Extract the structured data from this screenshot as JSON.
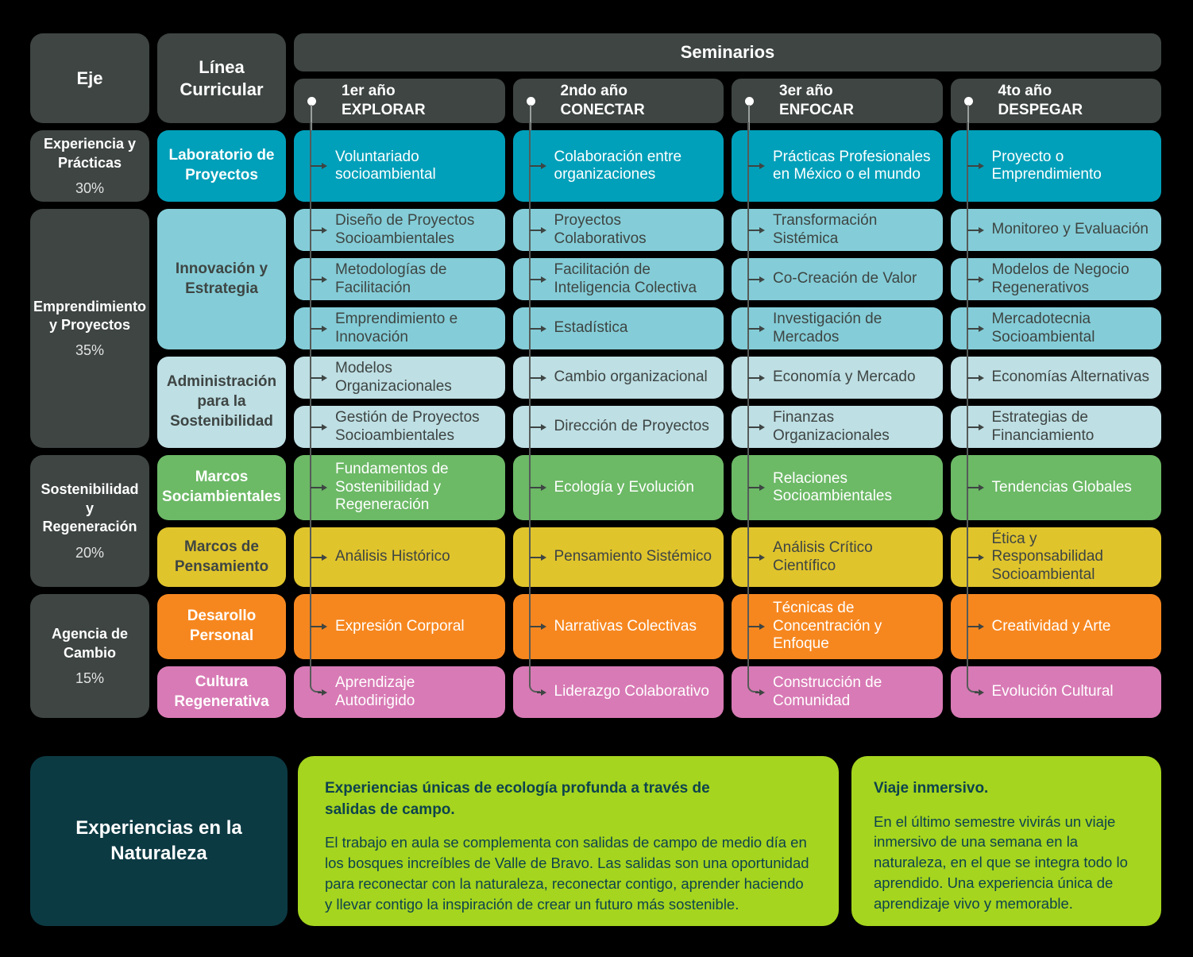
{
  "palette": {
    "background": "#000000",
    "header_dark": "#3e4543",
    "teal": "#00a0ba",
    "light_blue": "#84cdd8",
    "pale_blue": "#bedfe4",
    "green": "#6cb966",
    "yellow": "#e0c42c",
    "orange": "#f6871f",
    "pink": "#d87ab5",
    "dark_teal": "#0c3a43",
    "lime": "#a5d51e",
    "lime_text": "#0e434d",
    "timeline_line": "#565b59"
  },
  "header": {
    "eje": "Eje",
    "linea_curricular": "Línea Curricular",
    "seminarios": "Seminarios",
    "years": [
      {
        "year": "1er año",
        "theme": "EXPLORAR"
      },
      {
        "year": "2ndo año",
        "theme": "CONECTAR"
      },
      {
        "year": "3er año",
        "theme": "ENFOCAR"
      },
      {
        "year": "4to año",
        "theme": "DESPEGAR"
      }
    ]
  },
  "ejes": [
    {
      "label": "Experiencia y Prácticas",
      "percent": "30%"
    },
    {
      "label": "Emprendimiento y Proyectos",
      "percent": "35%"
    },
    {
      "label": "Sostenibilidad y Regeneración",
      "percent": "20%"
    },
    {
      "label": "Agencia de Cambio",
      "percent": "15%"
    }
  ],
  "lineas": [
    {
      "label": "Laboratorio de Proyectos"
    },
    {
      "label": "Innovación y Estrategia"
    },
    {
      "label": "Administración para la Sostenibilidad"
    },
    {
      "label": "Marcos Sociambientales"
    },
    {
      "label": "Marcos de Pensamiento"
    },
    {
      "label": "Desarollo Personal"
    },
    {
      "label": "Cultura Regenerativa"
    }
  ],
  "rows": [
    {
      "cells": [
        "Voluntariado socioambiental",
        "Colaboración entre organizaciones",
        "Prácticas Profesionales en México o el mundo",
        "Proyecto o Emprendimiento"
      ]
    },
    {
      "cells": [
        "Diseño de Proyectos Socioambientales",
        "Proyectos Colaborativos",
        "Transformación Sistémica",
        "Monitoreo y Evaluación"
      ]
    },
    {
      "cells": [
        "Metodologías de Facilitación",
        "Facilitación de Inteligencia Colectiva",
        "Co-Creación de Valor",
        "Modelos de Negocio Regenerativos"
      ]
    },
    {
      "cells": [
        "Emprendimiento e Innovación",
        "Estadística",
        "Investigación de Mercados",
        "Mercadotecnia Socioambiental"
      ]
    },
    {
      "cells": [
        "Modelos Organizacionales",
        "Cambio organizacional",
        "Economía y Mercado",
        "Economías Alternativas"
      ]
    },
    {
      "cells": [
        "Gestión de Proyectos Socioambientales",
        "Dirección de Proyectos",
        "Finanzas Organizacionales",
        "Estrategias de Financiamiento"
      ]
    },
    {
      "cells": [
        "Fundamentos de Sostenibilidad y Regeneración",
        "Ecología y Evolución",
        "Relaciones Socioambientales",
        "Tendencias Globales"
      ]
    },
    {
      "cells": [
        "Análisis Histórico",
        "Pensamiento Sistémico",
        "Análisis Crítico Científico",
        "Ética y Responsabilidad Socioambiental"
      ]
    },
    {
      "cells": [
        "Expresión Corporal",
        "Narrativas Colectivas",
        "Técnicas de Concentración y Enfoque",
        "Creatividad y Arte"
      ]
    },
    {
      "cells": [
        "Aprendizaje Autodirigido",
        "Liderazgo Colaborativo",
        "Construcción de Comunidad",
        "Evolución Cultural"
      ]
    }
  ],
  "nature": {
    "title": "Experiencias en la Naturaleza",
    "field_trips": {
      "heading": "Experiencias únicas de ecología profunda a través de salidas de campo.",
      "body": "El trabajo en aula se complementa con salidas de campo de medio día en los bosques increíbles de Valle de Bravo. Las salidas son una oportunidad para reconectar con la naturaleza, reconectar contigo, aprender haciendo y llevar contigo la inspiración de crear un futuro más sostenible."
    },
    "immersive_trip": {
      "heading": "Viaje inmersivo.",
      "body": "En el último semestre vivirás un viaje inmersivo de una semana en la naturaleza, en el que se integra todo lo aprendido. Una experiencia única de aprendizaje vivo y memorable."
    }
  }
}
